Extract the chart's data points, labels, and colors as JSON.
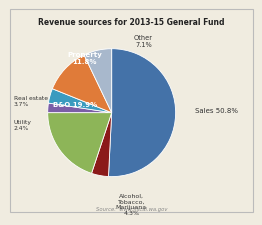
{
  "title": "Revenue sources for 2013-15 General Fund",
  "source": "Source:  www.fiscal.wa.gov",
  "slices": [
    {
      "label": "Sales 50.8%",
      "value": 50.8,
      "color": "#4472a8"
    },
    {
      "label": "Alcohol,\nTobacco,\nMarijuana\n4.3%",
      "value": 4.3,
      "color": "#8b1a1a"
    },
    {
      "label": "B&O 19.9%",
      "value": 19.9,
      "color": "#8db558"
    },
    {
      "label": "Utility\n2.4%",
      "value": 2.4,
      "color": "#7b5ea7"
    },
    {
      "label": "Real estate\n3.7%",
      "value": 3.7,
      "color": "#3a9bbf"
    },
    {
      "label": "Property\n11.8%",
      "value": 11.8,
      "color": "#e07b39"
    },
    {
      "label": "Other\n7.1%",
      "value": 7.1,
      "color": "#a8b8cc"
    }
  ],
  "background_color": "#f0ece0",
  "border_color": "#bbbbbb",
  "title_color": "#222222",
  "source_color": "#888888",
  "label_positions": [
    {
      "text": "Sales 50.8%",
      "xf": 0.76,
      "yf": 0.5,
      "ha": "left",
      "va": "center",
      "fontsize": 5.0,
      "color": "#333333",
      "fontweight": "normal"
    },
    {
      "text": "Alcohol,\nTobacco,\nMarijuana\n4.3%",
      "xf": 0.5,
      "yf": 0.1,
      "ha": "center",
      "va": "top",
      "fontsize": 4.5,
      "color": "#333333",
      "fontweight": "normal"
    },
    {
      "text": "B&O 19.9%",
      "xf": 0.27,
      "yf": 0.53,
      "ha": "center",
      "va": "center",
      "fontsize": 5.0,
      "color": "white",
      "fontweight": "bold"
    },
    {
      "text": "Utility\n2.4%",
      "xf": 0.02,
      "yf": 0.43,
      "ha": "left",
      "va": "center",
      "fontsize": 4.3,
      "color": "#333333",
      "fontweight": "normal"
    },
    {
      "text": "Real estate\n3.7%",
      "xf": 0.02,
      "yf": 0.55,
      "ha": "left",
      "va": "center",
      "fontsize": 4.3,
      "color": "#333333",
      "fontweight": "normal"
    },
    {
      "text": "Property\n11.8%",
      "xf": 0.31,
      "yf": 0.76,
      "ha": "center",
      "va": "center",
      "fontsize": 5.0,
      "color": "white",
      "fontweight": "bold"
    },
    {
      "text": "Other\n7.1%",
      "xf": 0.55,
      "yf": 0.84,
      "ha": "center",
      "va": "center",
      "fontsize": 4.8,
      "color": "#333333",
      "fontweight": "normal"
    }
  ]
}
